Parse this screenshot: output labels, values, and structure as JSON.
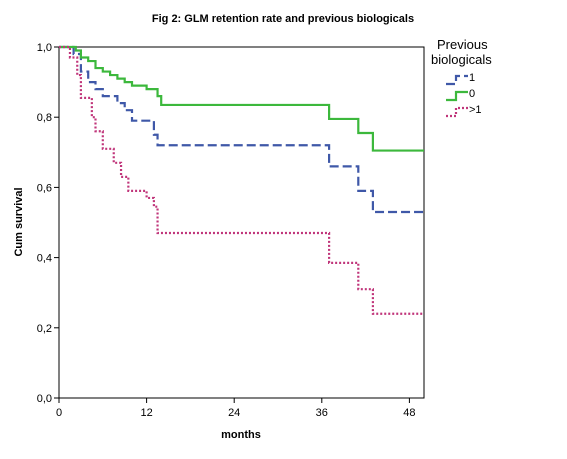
{
  "chart_data": {
    "type": "line",
    "title": "Fig 2: GLM retention rate and previous biologicals",
    "xlabel": "months",
    "ylabel": "Cum survival",
    "xlim": [
      0,
      50
    ],
    "ylim": [
      0,
      1.0
    ],
    "x_ticks": [
      0,
      12,
      24,
      36,
      48
    ],
    "y_ticks": [
      0.0,
      0.2,
      0.4,
      0.6,
      0.8,
      1.0
    ],
    "y_tick_labels": [
      "0,0",
      "0,2",
      "0,4",
      "0,6",
      "0,8",
      "1,0"
    ],
    "grid": false,
    "legend": {
      "title": "Previous biologicals",
      "placement": "right"
    },
    "series": [
      {
        "name": "1",
        "color": "#3f58a8",
        "dash": "dash",
        "steps": [
          [
            0,
            1.0
          ],
          [
            2,
            0.98
          ],
          [
            3,
            0.93
          ],
          [
            4,
            0.9
          ],
          [
            5,
            0.88
          ],
          [
            6,
            0.86
          ],
          [
            8,
            0.84
          ],
          [
            9,
            0.82
          ],
          [
            10,
            0.79
          ],
          [
            13,
            0.75
          ],
          [
            13.5,
            0.72
          ],
          [
            37,
            0.66
          ],
          [
            41,
            0.59
          ],
          [
            43,
            0.53
          ],
          [
            50,
            0.53
          ]
        ]
      },
      {
        "name": "0",
        "color": "#3cb83c",
        "dash": "solid",
        "steps": [
          [
            0,
            1.0
          ],
          [
            2.3,
            0.99
          ],
          [
            3,
            0.97
          ],
          [
            4,
            0.96
          ],
          [
            5,
            0.94
          ],
          [
            6,
            0.93
          ],
          [
            7,
            0.92
          ],
          [
            8,
            0.91
          ],
          [
            9,
            0.9
          ],
          [
            10,
            0.89
          ],
          [
            12,
            0.88
          ],
          [
            13.5,
            0.86
          ],
          [
            14,
            0.835
          ],
          [
            37,
            0.795
          ],
          [
            41,
            0.755
          ],
          [
            43,
            0.705
          ],
          [
            50,
            0.705
          ]
        ]
      },
      {
        "name": ">1",
        "color": "#c0357a",
        "dash": "dot",
        "steps": [
          [
            0,
            1.0
          ],
          [
            1.5,
            0.97
          ],
          [
            2.5,
            0.92
          ],
          [
            3,
            0.855
          ],
          [
            4.5,
            0.8
          ],
          [
            5,
            0.76
          ],
          [
            6,
            0.71
          ],
          [
            7.5,
            0.67
          ],
          [
            8.5,
            0.63
          ],
          [
            9.5,
            0.59
          ],
          [
            12,
            0.57
          ],
          [
            13,
            0.545
          ],
          [
            13.5,
            0.47
          ],
          [
            37,
            0.385
          ],
          [
            41,
            0.31
          ],
          [
            43,
            0.24
          ],
          [
            50,
            0.24
          ]
        ]
      }
    ]
  }
}
